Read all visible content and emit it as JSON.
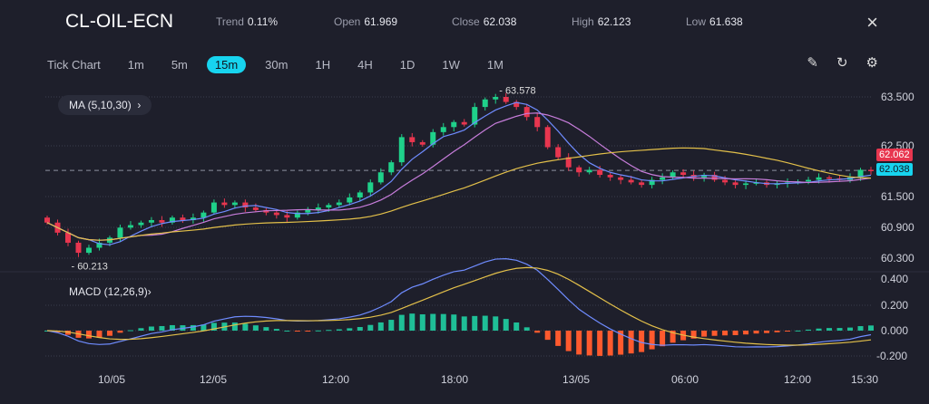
{
  "header": {
    "symbol": "CL-OIL-ECN",
    "stats": [
      {
        "label": "Trend",
        "value": "0.11%"
      },
      {
        "label": "Open",
        "value": "61.969"
      },
      {
        "label": "Close",
        "value": "62.038"
      },
      {
        "label": "High",
        "value": "62.123"
      },
      {
        "label": "Low",
        "value": "61.638"
      }
    ],
    "close_icon": "×"
  },
  "timeframes": {
    "items": [
      "Tick Chart",
      "1m",
      "5m",
      "15m",
      "30m",
      "1H",
      "4H",
      "1D",
      "1W",
      "1M"
    ],
    "active": "15m"
  },
  "tools": {
    "draw": "✎",
    "reset": "↻",
    "settings": "⚙"
  },
  "indicators": {
    "ma": "MA (5,10,30)",
    "ma_chevron": "›",
    "macd": "MACD (12,26,9)",
    "macd_chevron": "›"
  },
  "price_axis": [
    "63.500",
    "62.500",
    "61.500",
    "60.900",
    "60.300"
  ],
  "macd_axis": [
    "0.400",
    "0.200",
    "0.000",
    "-0.200"
  ],
  "price_tags": {
    "last": "62.062",
    "close": "62.038"
  },
  "annotations": {
    "max": "63.578",
    "min": "60.213"
  },
  "x_labels": [
    "10/05",
    "12/05",
    "12:00",
    "18:00",
    "13/05",
    "06:00",
    "12:00",
    "15:30"
  ],
  "colors": {
    "up": "#1fd18a",
    "down": "#e8364f",
    "ma5": "#6f8cff",
    "ma10": "#c77ddb",
    "ma30": "#e3c04a",
    "hist_up": "#1fbf97",
    "hist_down": "#ff5a2e",
    "accent": "#17d4ef"
  },
  "chart_data": {
    "type": "candlestick",
    "closes": [
      61.0,
      60.8,
      60.6,
      60.4,
      60.5,
      60.6,
      60.7,
      60.9,
      60.95,
      61.0,
      61.05,
      61.0,
      61.1,
      61.05,
      61.1,
      61.2,
      61.4,
      61.35,
      61.4,
      61.3,
      61.25,
      61.2,
      61.15,
      61.1,
      61.2,
      61.25,
      61.3,
      61.35,
      61.4,
      61.5,
      61.6,
      61.8,
      62.0,
      62.2,
      62.7,
      62.6,
      62.55,
      62.8,
      62.9,
      63.0,
      62.95,
      63.3,
      63.45,
      63.5,
      63.4,
      63.3,
      63.1,
      62.9,
      62.5,
      62.3,
      62.1,
      62.0,
      62.05,
      61.95,
      61.9,
      61.85,
      61.8,
      61.75,
      61.85,
      61.9,
      62.0,
      61.95,
      61.9,
      61.95,
      61.85,
      61.8,
      61.75,
      61.78,
      61.8,
      61.75,
      61.78,
      61.8,
      61.82,
      61.85,
      61.9,
      61.88,
      61.85,
      61.9,
      62.05,
      62.038
    ],
    "ylim": [
      60.1,
      63.7
    ],
    "ma_periods": [
      5,
      10,
      30
    ],
    "macd_params": [
      12,
      26,
      9
    ]
  }
}
